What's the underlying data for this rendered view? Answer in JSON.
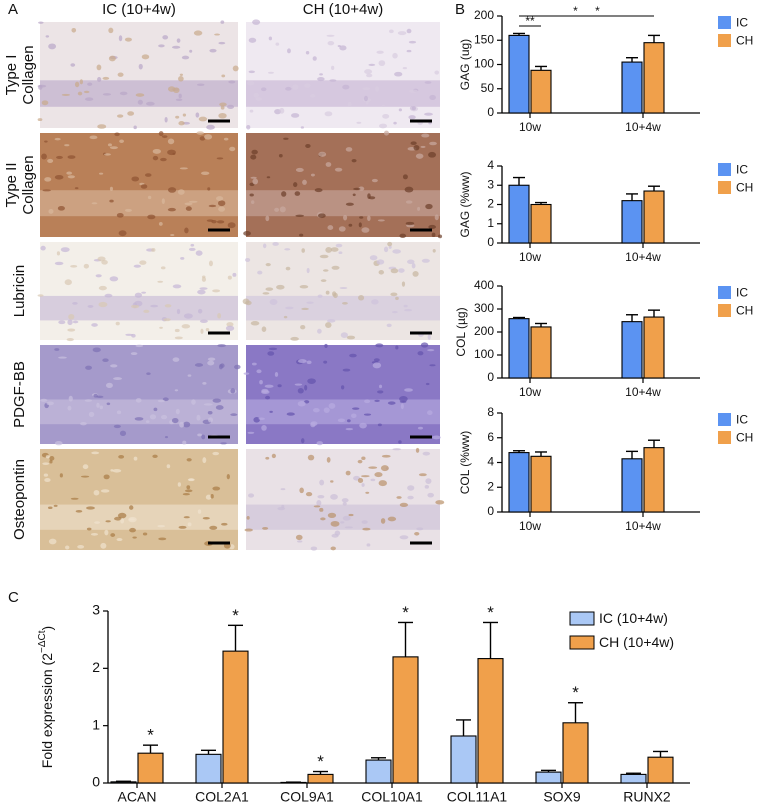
{
  "panel_labels": {
    "a": "A",
    "b": "B",
    "c": "C"
  },
  "images": {
    "columns": [
      "IC (10+4w)",
      "CH (10+4w)"
    ],
    "rows": [
      [
        "Type I",
        "Collagen"
      ],
      [
        "Type II",
        "Collagen"
      ],
      [
        "Lubricin"
      ],
      [
        "PDGF-BB"
      ],
      [
        "Osteopontin"
      ]
    ]
  },
  "chart_data": [
    {
      "type": "bar",
      "y_label": "GAG (ug)",
      "categories": [
        "10w",
        "10+4w"
      ],
      "series": [
        {
          "name": "IC",
          "color": "#5b93f2",
          "values": [
            160,
            105
          ],
          "errors": [
            4,
            9
          ]
        },
        {
          "name": "CH",
          "color": "#f0a04b",
          "values": [
            88,
            145
          ],
          "errors": [
            8,
            15
          ]
        }
      ],
      "ylim": [
        0,
        200
      ],
      "yticks": [
        0,
        50,
        100,
        150,
        200
      ],
      "annotations": [
        "*",
        "**",
        "*"
      ]
    },
    {
      "type": "bar",
      "y_label": "GAG (%ww)",
      "categories": [
        "10w",
        "10+4w"
      ],
      "series": [
        {
          "name": "IC",
          "color": "#5b93f2",
          "values": [
            3.0,
            2.2
          ],
          "errors": [
            0.4,
            0.35
          ]
        },
        {
          "name": "CH",
          "color": "#f0a04b",
          "values": [
            2.0,
            2.7
          ],
          "errors": [
            0.1,
            0.25
          ]
        }
      ],
      "ylim": [
        0,
        4
      ],
      "yticks": [
        0,
        1,
        2,
        3,
        4
      ]
    },
    {
      "type": "bar",
      "y_label": "COL (µg)",
      "categories": [
        "10w",
        "10+4w"
      ],
      "series": [
        {
          "name": "IC",
          "color": "#5b93f2",
          "values": [
            258,
            245
          ],
          "errors": [
            5,
            30
          ]
        },
        {
          "name": "CH",
          "color": "#f0a04b",
          "values": [
            222,
            265
          ],
          "errors": [
            15,
            30
          ]
        }
      ],
      "ylim": [
        0,
        400
      ],
      "yticks": [
        0,
        100,
        200,
        300,
        400
      ]
    },
    {
      "type": "bar",
      "y_label": "COL (%ww)",
      "categories": [
        "10w",
        "10+4w"
      ],
      "series": [
        {
          "name": "IC",
          "color": "#5b93f2",
          "values": [
            4.8,
            4.3
          ],
          "errors": [
            0.15,
            0.6
          ]
        },
        {
          "name": "CH",
          "color": "#f0a04b",
          "values": [
            4.5,
            5.2
          ],
          "errors": [
            0.35,
            0.6
          ]
        }
      ],
      "ylim": [
        0,
        8
      ],
      "yticks": [
        0,
        2,
        4,
        6,
        8
      ]
    },
    {
      "type": "bar",
      "y_label": {
        "text": "Fold expression (2",
        "superscript": "−ΔCt",
        "suffix": ")"
      },
      "categories": [
        "ACAN",
        "COL2A1",
        "COL9A1",
        "COL10A1",
        "COL11A1",
        "SOX9",
        "RUNX2"
      ],
      "series": [
        {
          "name": "IC (10+4w)",
          "color": "#aac8f5",
          "values": [
            0.02,
            0.5,
            0.01,
            0.4,
            0.82,
            0.19,
            0.15
          ],
          "errors": [
            0.01,
            0.07,
            0.005,
            0.04,
            0.28,
            0.03,
            0.02
          ]
        },
        {
          "name": "CH (10+4w)",
          "color": "#f0a04b",
          "values": [
            0.52,
            2.3,
            0.15,
            2.2,
            2.17,
            1.05,
            0.45
          ],
          "errors": [
            0.14,
            0.45,
            0.05,
            0.6,
            0.63,
            0.35,
            0.1
          ]
        }
      ],
      "ylim": [
        0,
        3
      ],
      "yticks": [
        0,
        1,
        2,
        3
      ],
      "annotations": [
        "*",
        "*",
        "*",
        "*",
        "*",
        "*",
        null
      ]
    }
  ]
}
